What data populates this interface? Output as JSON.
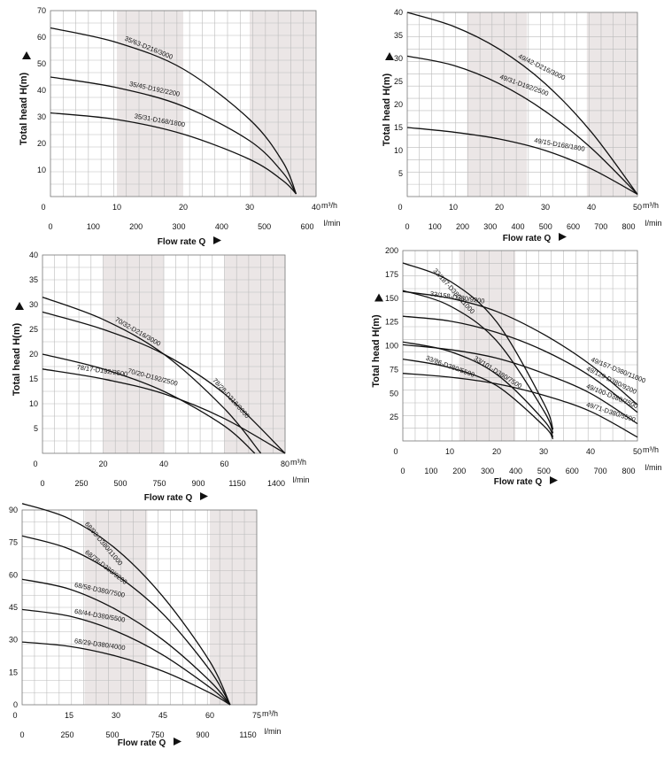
{
  "common": {
    "ylabel": "Total head H(m)",
    "xlabel": "Flow rate Q",
    "unit_top": "m³/h",
    "unit_bottom": "l/min",
    "band_color": "#ebe6e6"
  },
  "chart_data": [
    {
      "type": "line",
      "xlim": [
        0,
        40
      ],
      "ylim": [
        0,
        70
      ],
      "y_ticks": [
        10,
        20,
        30,
        40,
        50,
        60,
        70
      ],
      "x_ticks": [
        10,
        20,
        30,
        40
      ],
      "lpm_ticks": [
        "0",
        "100",
        "200",
        "300",
        "400",
        "500",
        "600"
      ],
      "shaded_x": [
        [
          10,
          20
        ],
        [
          30,
          40
        ]
      ],
      "series": [
        {
          "name": "35/63-D216/3000",
          "x": [
            0,
            10,
            20,
            30,
            35,
            37
          ],
          "y": [
            63.5,
            58,
            48,
            29,
            13,
            1
          ]
        },
        {
          "name": "35/45-D192/2200",
          "x": [
            0,
            10,
            20,
            30,
            35,
            37
          ],
          "y": [
            45,
            41,
            34,
            21,
            9,
            1
          ]
        },
        {
          "name": "35/31-D168/1800",
          "x": [
            0,
            10,
            20,
            30,
            35,
            37
          ],
          "y": [
            31.5,
            29,
            23.5,
            14,
            6,
            1
          ]
        }
      ]
    },
    {
      "type": "line",
      "xlim": [
        0,
        50
      ],
      "ylim": [
        0,
        40
      ],
      "y_ticks": [
        5,
        10,
        15,
        20,
        25,
        30,
        35,
        40
      ],
      "x_ticks": [
        10,
        20,
        30,
        40,
        50
      ],
      "lpm_ticks": [
        "0",
        "100",
        "200",
        "300",
        "400",
        "500",
        "600",
        "700",
        "800"
      ],
      "shaded_x": [
        [
          13,
          26
        ],
        [
          39,
          50
        ]
      ],
      "series": [
        {
          "name": "49/42-D216/3000",
          "x": [
            0,
            10,
            20,
            30,
            40,
            50
          ],
          "y": [
            40,
            37,
            32,
            24.5,
            14,
            0.5
          ]
        },
        {
          "name": "49/31-D192/2500",
          "x": [
            0,
            10,
            20,
            30,
            40,
            50
          ],
          "y": [
            30.5,
            28.5,
            24.5,
            18.5,
            10.5,
            0.5
          ]
        },
        {
          "name": "49/15-D168/1800",
          "x": [
            0,
            10,
            20,
            30,
            40,
            50
          ],
          "y": [
            15,
            14,
            12.5,
            10,
            6,
            0.5
          ]
        }
      ]
    },
    {
      "type": "line",
      "xlim": [
        0,
        80
      ],
      "ylim": [
        0,
        40
      ],
      "y_ticks": [
        5,
        10,
        15,
        20,
        25,
        30,
        35,
        40
      ],
      "x_ticks": [
        20,
        40,
        60,
        80
      ],
      "lpm_ticks": [
        "0",
        "250",
        "500",
        "750",
        "900",
        "1150",
        "1400"
      ],
      "shaded_x": [
        [
          20,
          40
        ],
        [
          60,
          80
        ]
      ],
      "series": [
        {
          "name": "70/32-D216/3000",
          "x": [
            0,
            20,
            40,
            60,
            72
          ],
          "y": [
            31.5,
            27,
            20,
            9,
            0
          ]
        },
        {
          "name": "78/28-D216/3000",
          "x": [
            0,
            20,
            40,
            60,
            80
          ],
          "y": [
            28.5,
            25,
            20,
            12,
            0
          ]
        },
        {
          "name": "70/20-D192/2500",
          "x": [
            0,
            20,
            40,
            60,
            70
          ],
          "y": [
            20,
            17,
            12.5,
            5.5,
            0
          ]
        },
        {
          "name": "78/17-D192/2500",
          "x": [
            0,
            20,
            40,
            60,
            80
          ],
          "y": [
            17,
            15,
            12,
            7,
            0
          ]
        }
      ]
    },
    {
      "type": "line",
      "xlim": [
        0,
        50
      ],
      "ylim": [
        0,
        200
      ],
      "y_ticks": [
        25,
        50,
        75,
        100,
        125,
        150,
        175,
        200
      ],
      "x_ticks": [
        10,
        20,
        30,
        40,
        50
      ],
      "lpm_ticks": [
        "0",
        "100",
        "200",
        "300",
        "400",
        "500",
        "600",
        "700",
        "800"
      ],
      "shaded_x": [
        [
          12,
          24
        ],
        [
          50,
          50
        ]
      ],
      "series": [
        {
          "name": "33/187-D380/11000",
          "x": [
            0,
            10,
            20,
            30,
            32
          ],
          "y": [
            187,
            168,
            125,
            40,
            12
          ]
        },
        {
          "name": "49/157-D380/11000",
          "x": [
            0,
            10,
            20,
            30,
            40,
            50
          ],
          "y": [
            157,
            150,
            136,
            112,
            80,
            38
          ]
        },
        {
          "name": "33/158-D380/9200",
          "x": [
            0,
            10,
            20,
            30,
            32
          ],
          "y": [
            158,
            142,
            105,
            32,
            8
          ]
        },
        {
          "name": "49/129-D380/9200",
          "x": [
            0,
            10,
            20,
            30,
            40,
            50
          ],
          "y": [
            131,
            126,
            114,
            95,
            68,
            30
          ]
        },
        {
          "name": "33/101-D380/7500",
          "x": [
            0,
            10,
            20,
            30,
            32
          ],
          "y": [
            104,
            94,
            70,
            22,
            4
          ]
        },
        {
          "name": "49/100-D380/7500",
          "x": [
            0,
            10,
            20,
            30,
            40,
            50
          ],
          "y": [
            101,
            96,
            87,
            71,
            50,
            18
          ]
        },
        {
          "name": "33/86-D380/5500",
          "x": [
            0,
            10,
            20,
            30,
            32
          ],
          "y": [
            86,
            77,
            58,
            16,
            2
          ]
        },
        {
          "name": "49/71-D380/5500",
          "x": [
            0,
            10,
            20,
            30,
            40,
            50
          ],
          "y": [
            71,
            67,
            60,
            48,
            31,
            4
          ]
        }
      ]
    },
    {
      "type": "line",
      "xlim": [
        0,
        75
      ],
      "ylim": [
        0,
        90
      ],
      "y_ticks": [
        0,
        15,
        30,
        45,
        60,
        75,
        90
      ],
      "x_ticks": [
        15,
        30,
        45,
        60,
        75
      ],
      "lpm_ticks": [
        "0",
        "250",
        "500",
        "750",
        "900",
        "1150"
      ],
      "shaded_x": [
        [
          20,
          40
        ],
        [
          60,
          75
        ]
      ],
      "series": [
        {
          "name": "68/93-D380/11000",
          "x": [
            0,
            15,
            30,
            45,
            60,
            66.5
          ],
          "y": [
            93,
            86,
            72,
            50,
            20,
            0
          ]
        },
        {
          "name": "68/78-D380/9200",
          "x": [
            0,
            15,
            30,
            45,
            60,
            66.5
          ],
          "y": [
            78,
            72,
            60,
            42,
            16,
            0
          ]
        },
        {
          "name": "68/58-D380/7500",
          "x": [
            0,
            15,
            30,
            45,
            60,
            66.5
          ],
          "y": [
            58,
            53.5,
            44,
            30,
            11,
            0
          ]
        },
        {
          "name": "68/44-D380/5500",
          "x": [
            0,
            15,
            30,
            45,
            60,
            66.5
          ],
          "y": [
            44,
            41,
            34,
            23,
            8,
            0
          ]
        },
        {
          "name": "68/29-D380/4000",
          "x": [
            0,
            15,
            30,
            45,
            60,
            66.5
          ],
          "y": [
            29,
            27,
            22.5,
            15.5,
            5.5,
            0
          ]
        }
      ]
    }
  ]
}
